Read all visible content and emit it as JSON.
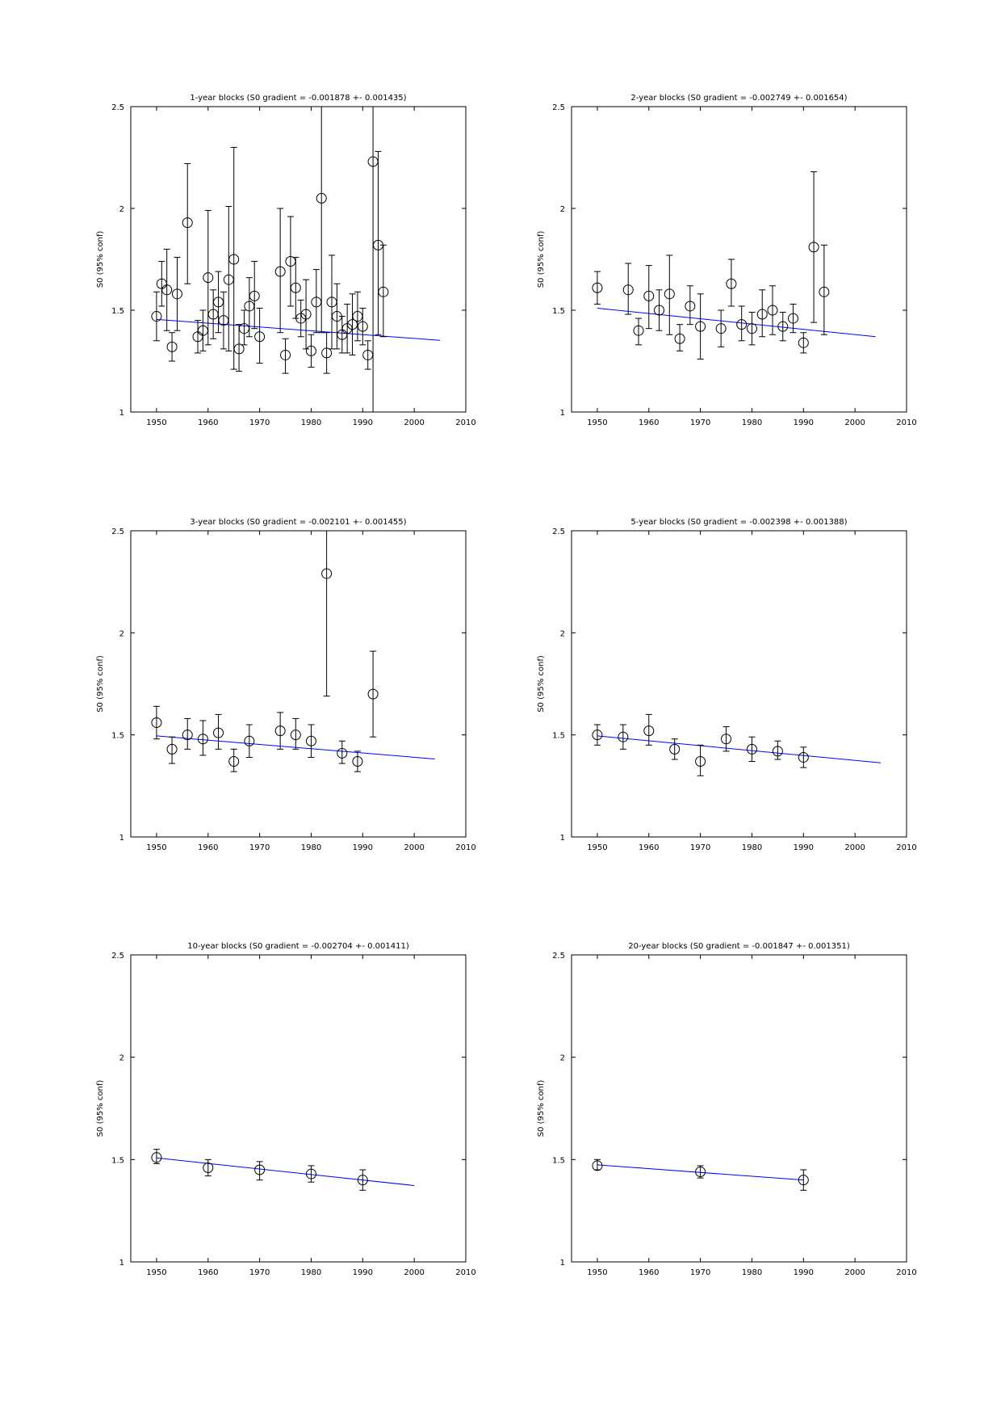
{
  "colors": {
    "fit_line": "#0000ff",
    "markers": "#000000",
    "background": "#ffffff"
  },
  "chart_data": [
    {
      "type": "scatter",
      "title": "1-year blocks (S0 gradient = -0.001878 +- 0.001435)",
      "xlabel": "",
      "ylabel": "S0 (95% conf)",
      "xlim": [
        1945,
        2010
      ],
      "ylim": [
        1,
        2.5
      ],
      "xticks": [
        "1950",
        "1960",
        "1970",
        "1980",
        "1990",
        "2000",
        "2010"
      ],
      "yticks": [
        "1",
        "1.5",
        "2",
        "2.5"
      ],
      "grid": false,
      "points": [
        {
          "x": 1950,
          "y": 1.47,
          "lo": 1.35,
          "hi": 1.59
        },
        {
          "x": 1951,
          "y": 1.63,
          "lo": 1.52,
          "hi": 1.74
        },
        {
          "x": 1952,
          "y": 1.6,
          "lo": 1.4,
          "hi": 1.8
        },
        {
          "x": 1953,
          "y": 1.32,
          "lo": 1.25,
          "hi": 1.39
        },
        {
          "x": 1954,
          "y": 1.58,
          "lo": 1.4,
          "hi": 1.76
        },
        {
          "x": 1956,
          "y": 1.93,
          "lo": 1.63,
          "hi": 2.22
        },
        {
          "x": 1958,
          "y": 1.37,
          "lo": 1.29,
          "hi": 1.45
        },
        {
          "x": 1959,
          "y": 1.4,
          "lo": 1.3,
          "hi": 1.5
        },
        {
          "x": 1960,
          "y": 1.66,
          "lo": 1.33,
          "hi": 1.99
        },
        {
          "x": 1961,
          "y": 1.48,
          "lo": 1.36,
          "hi": 1.6
        },
        {
          "x": 1962,
          "y": 1.54,
          "lo": 1.39,
          "hi": 1.69
        },
        {
          "x": 1963,
          "y": 1.45,
          "lo": 1.31,
          "hi": 1.59
        },
        {
          "x": 1964,
          "y": 1.65,
          "lo": 1.3,
          "hi": 2.01
        },
        {
          "x": 1965,
          "y": 1.75,
          "lo": 1.21,
          "hi": 2.3
        },
        {
          "x": 1966,
          "y": 1.31,
          "lo": 1.2,
          "hi": 1.43
        },
        {
          "x": 1967,
          "y": 1.41,
          "lo": 1.33,
          "hi": 1.5
        },
        {
          "x": 1968,
          "y": 1.52,
          "lo": 1.37,
          "hi": 1.66
        },
        {
          "x": 1969,
          "y": 1.57,
          "lo": 1.41,
          "hi": 1.74
        },
        {
          "x": 1970,
          "y": 1.37,
          "lo": 1.24,
          "hi": 1.51
        },
        {
          "x": 1974,
          "y": 1.69,
          "lo": 1.39,
          "hi": 2.0
        },
        {
          "x": 1975,
          "y": 1.28,
          "lo": 1.19,
          "hi": 1.36
        },
        {
          "x": 1976,
          "y": 1.74,
          "lo": 1.52,
          "hi": 1.96
        },
        {
          "x": 1977,
          "y": 1.61,
          "lo": 1.46,
          "hi": 1.76
        },
        {
          "x": 1978,
          "y": 1.46,
          "lo": 1.37,
          "hi": 1.55
        },
        {
          "x": 1979,
          "y": 1.48,
          "lo": 1.31,
          "hi": 1.65
        },
        {
          "x": 1980,
          "y": 1.3,
          "lo": 1.22,
          "hi": 1.38
        },
        {
          "x": 1981,
          "y": 1.54,
          "lo": 1.39,
          "hi": 1.7
        },
        {
          "x": 1982,
          "y": 2.05,
          "lo": 1.39,
          "hi": 2.5
        },
        {
          "x": 1983,
          "y": 1.29,
          "lo": 1.19,
          "hi": 1.39
        },
        {
          "x": 1984,
          "y": 1.54,
          "lo": 1.31,
          "hi": 1.77
        },
        {
          "x": 1985,
          "y": 1.47,
          "lo": 1.31,
          "hi": 1.63
        },
        {
          "x": 1986,
          "y": 1.38,
          "lo": 1.29,
          "hi": 1.47
        },
        {
          "x": 1987,
          "y": 1.41,
          "lo": 1.29,
          "hi": 1.53
        },
        {
          "x": 1988,
          "y": 1.43,
          "lo": 1.28,
          "hi": 1.58
        },
        {
          "x": 1989,
          "y": 1.47,
          "lo": 1.35,
          "hi": 1.59
        },
        {
          "x": 1990,
          "y": 1.42,
          "lo": 1.33,
          "hi": 1.51
        },
        {
          "x": 1991,
          "y": 1.28,
          "lo": 1.21,
          "hi": 1.35
        },
        {
          "x": 1992,
          "y": 2.23,
          "lo": 1.0,
          "hi": 2.5
        },
        {
          "x": 1993,
          "y": 1.82,
          "lo": 1.38,
          "hi": 2.28
        },
        {
          "x": 1994,
          "y": 1.59,
          "lo": 1.37,
          "hi": 1.82
        }
      ],
      "fit": {
        "x": [
          1950,
          2005
        ],
        "y": [
          1.455,
          1.352
        ]
      }
    },
    {
      "type": "scatter",
      "title": "2-year blocks (S0 gradient = -0.002749 +- 0.001654)",
      "xlabel": "",
      "ylabel": "S0 (95% conf)",
      "xlim": [
        1945,
        2010
      ],
      "ylim": [
        1,
        2.5
      ],
      "xticks": [
        "1950",
        "1960",
        "1970",
        "1980",
        "1990",
        "2000",
        "2010"
      ],
      "yticks": [
        "1",
        "1.5",
        "2",
        "2.5"
      ],
      "grid": false,
      "points": [
        {
          "x": 1950,
          "y": 1.61,
          "lo": 1.53,
          "hi": 1.69
        },
        {
          "x": 1956,
          "y": 1.6,
          "lo": 1.48,
          "hi": 1.73
        },
        {
          "x": 1958,
          "y": 1.4,
          "lo": 1.33,
          "hi": 1.46
        },
        {
          "x": 1960,
          "y": 1.57,
          "lo": 1.41,
          "hi": 1.72
        },
        {
          "x": 1962,
          "y": 1.5,
          "lo": 1.4,
          "hi": 1.6
        },
        {
          "x": 1964,
          "y": 1.58,
          "lo": 1.38,
          "hi": 1.77
        },
        {
          "x": 1966,
          "y": 1.36,
          "lo": 1.3,
          "hi": 1.43
        },
        {
          "x": 1968,
          "y": 1.52,
          "lo": 1.43,
          "hi": 1.62
        },
        {
          "x": 1970,
          "y": 1.42,
          "lo": 1.26,
          "hi": 1.58
        },
        {
          "x": 1974,
          "y": 1.41,
          "lo": 1.32,
          "hi": 1.5
        },
        {
          "x": 1976,
          "y": 1.63,
          "lo": 1.52,
          "hi": 1.75
        },
        {
          "x": 1978,
          "y": 1.43,
          "lo": 1.35,
          "hi": 1.52
        },
        {
          "x": 1980,
          "y": 1.41,
          "lo": 1.33,
          "hi": 1.49
        },
        {
          "x": 1982,
          "y": 1.48,
          "lo": 1.37,
          "hi": 1.6
        },
        {
          "x": 1984,
          "y": 1.5,
          "lo": 1.38,
          "hi": 1.62
        },
        {
          "x": 1986,
          "y": 1.42,
          "lo": 1.35,
          "hi": 1.49
        },
        {
          "x": 1988,
          "y": 1.46,
          "lo": 1.39,
          "hi": 1.53
        },
        {
          "x": 1990,
          "y": 1.34,
          "lo": 1.29,
          "hi": 1.39
        },
        {
          "x": 1992,
          "y": 1.81,
          "lo": 1.44,
          "hi": 2.18
        },
        {
          "x": 1994,
          "y": 1.59,
          "lo": 1.38,
          "hi": 1.82
        }
      ],
      "fit": {
        "x": [
          1950,
          2004
        ],
        "y": [
          1.51,
          1.37
        ]
      }
    },
    {
      "type": "scatter",
      "title": "3-year blocks (S0 gradient = -0.002101 +- 0.001455)",
      "xlabel": "",
      "ylabel": "S0 (95% conf)",
      "xlim": [
        1945,
        2010
      ],
      "ylim": [
        1,
        2.5
      ],
      "xticks": [
        "1950",
        "1960",
        "1970",
        "1980",
        "1990",
        "2000",
        "2010"
      ],
      "yticks": [
        "1",
        "1.5",
        "2",
        "2.5"
      ],
      "grid": false,
      "points": [
        {
          "x": 1950,
          "y": 1.56,
          "lo": 1.48,
          "hi": 1.64
        },
        {
          "x": 1953,
          "y": 1.43,
          "lo": 1.36,
          "hi": 1.49
        },
        {
          "x": 1956,
          "y": 1.5,
          "lo": 1.43,
          "hi": 1.58
        },
        {
          "x": 1959,
          "y": 1.48,
          "lo": 1.4,
          "hi": 1.57
        },
        {
          "x": 1962,
          "y": 1.51,
          "lo": 1.43,
          "hi": 1.6
        },
        {
          "x": 1965,
          "y": 1.37,
          "lo": 1.32,
          "hi": 1.43
        },
        {
          "x": 1968,
          "y": 1.47,
          "lo": 1.39,
          "hi": 1.55
        },
        {
          "x": 1974,
          "y": 1.52,
          "lo": 1.43,
          "hi": 1.61
        },
        {
          "x": 1977,
          "y": 1.5,
          "lo": 1.43,
          "hi": 1.58
        },
        {
          "x": 1980,
          "y": 1.47,
          "lo": 1.39,
          "hi": 1.55
        },
        {
          "x": 1983,
          "y": 2.29,
          "lo": 1.69,
          "hi": 2.5
        },
        {
          "x": 1986,
          "y": 1.41,
          "lo": 1.36,
          "hi": 1.47
        },
        {
          "x": 1989,
          "y": 1.37,
          "lo": 1.32,
          "hi": 1.42
        },
        {
          "x": 1992,
          "y": 1.7,
          "lo": 1.49,
          "hi": 1.91
        }
      ],
      "fit": {
        "x": [
          1950,
          2004
        ],
        "y": [
          1.495,
          1.382
        ]
      }
    },
    {
      "type": "scatter",
      "title": "5-year blocks (S0 gradient = -0.002398 +- 0.001388)",
      "xlabel": "",
      "ylabel": "S0 (95% conf)",
      "xlim": [
        1945,
        2010
      ],
      "ylim": [
        1,
        2.5
      ],
      "xticks": [
        "1950",
        "1960",
        "1970",
        "1980",
        "1990",
        "2000",
        "2010"
      ],
      "yticks": [
        "1",
        "1.5",
        "2",
        "2.5"
      ],
      "grid": false,
      "points": [
        {
          "x": 1950,
          "y": 1.5,
          "lo": 1.45,
          "hi": 1.55
        },
        {
          "x": 1955,
          "y": 1.49,
          "lo": 1.43,
          "hi": 1.55
        },
        {
          "x": 1960,
          "y": 1.52,
          "lo": 1.45,
          "hi": 1.6
        },
        {
          "x": 1965,
          "y": 1.43,
          "lo": 1.38,
          "hi": 1.48
        },
        {
          "x": 1970,
          "y": 1.37,
          "lo": 1.3,
          "hi": 1.45
        },
        {
          "x": 1975,
          "y": 1.48,
          "lo": 1.42,
          "hi": 1.54
        },
        {
          "x": 1980,
          "y": 1.43,
          "lo": 1.37,
          "hi": 1.49
        },
        {
          "x": 1985,
          "y": 1.42,
          "lo": 1.38,
          "hi": 1.47
        },
        {
          "x": 1990,
          "y": 1.39,
          "lo": 1.34,
          "hi": 1.44
        }
      ],
      "fit": {
        "x": [
          1950,
          2005
        ],
        "y": [
          1.495,
          1.363
        ]
      }
    },
    {
      "type": "scatter",
      "title": "10-year blocks (S0 gradient = -0.002704 +- 0.001411)",
      "xlabel": "",
      "ylabel": "S0 (95% conf)",
      "xlim": [
        1945,
        2010
      ],
      "ylim": [
        1,
        2.5
      ],
      "xticks": [
        "1950",
        "1960",
        "1970",
        "1980",
        "1990",
        "2000",
        "2010"
      ],
      "yticks": [
        "1",
        "1.5",
        "2",
        "2.5"
      ],
      "grid": false,
      "points": [
        {
          "x": 1950,
          "y": 1.51,
          "lo": 1.48,
          "hi": 1.55
        },
        {
          "x": 1960,
          "y": 1.46,
          "lo": 1.42,
          "hi": 1.5
        },
        {
          "x": 1970,
          "y": 1.45,
          "lo": 1.4,
          "hi": 1.49
        },
        {
          "x": 1980,
          "y": 1.43,
          "lo": 1.39,
          "hi": 1.47
        },
        {
          "x": 1990,
          "y": 1.4,
          "lo": 1.35,
          "hi": 1.45
        }
      ],
      "fit": {
        "x": [
          1950,
          2000
        ],
        "y": [
          1.508,
          1.373
        ]
      }
    },
    {
      "type": "scatter",
      "title": "20-year blocks (S0 gradient = -0.001847 +- 0.001351)",
      "xlabel": "",
      "ylabel": "S0 (95% conf)",
      "xlim": [
        1945,
        2010
      ],
      "ylim": [
        1,
        2.5
      ],
      "xticks": [
        "1950",
        "1960",
        "1970",
        "1980",
        "1990",
        "2000",
        "2010"
      ],
      "yticks": [
        "1",
        "1.5",
        "2",
        "2.5"
      ],
      "grid": false,
      "points": [
        {
          "x": 1950,
          "y": 1.47,
          "lo": 1.45,
          "hi": 1.5
        },
        {
          "x": 1970,
          "y": 1.44,
          "lo": 1.41,
          "hi": 1.47
        },
        {
          "x": 1990,
          "y": 1.4,
          "lo": 1.35,
          "hi": 1.45
        }
      ],
      "fit": {
        "x": [
          1950,
          1990
        ],
        "y": [
          1.474,
          1.4
        ]
      }
    }
  ]
}
